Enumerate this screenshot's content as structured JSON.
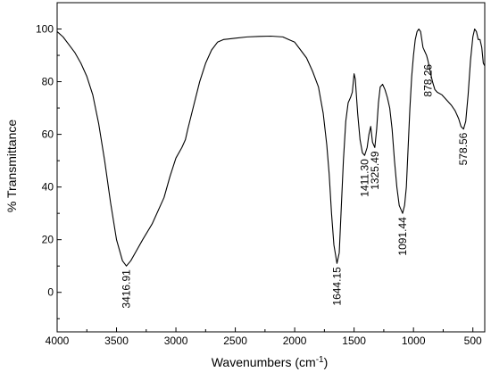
{
  "chart_data": {
    "type": "line",
    "title": "",
    "xlabel": "Wavenumbers (cm",
    "xlabel_sup": "-1",
    "xlabel_close": ")",
    "ylabel": "% Transmittance",
    "xlim": [
      4000,
      400
    ],
    "ylim": [
      -15,
      110
    ],
    "x_reversed": true,
    "grid": false,
    "xticks": [
      4000,
      3500,
      3000,
      2500,
      2000,
      1500,
      1000,
      500
    ],
    "yticks": [
      0,
      20,
      40,
      60,
      80,
      100
    ],
    "series": [
      {
        "color": "#000000",
        "points": [
          [
            4000,
            99
          ],
          [
            3950,
            97
          ],
          [
            3900,
            94
          ],
          [
            3850,
            91
          ],
          [
            3800,
            87
          ],
          [
            3750,
            82
          ],
          [
            3700,
            75
          ],
          [
            3650,
            64
          ],
          [
            3600,
            50
          ],
          [
            3550,
            34
          ],
          [
            3500,
            20
          ],
          [
            3450,
            12
          ],
          [
            3416.91,
            10
          ],
          [
            3380,
            12
          ],
          [
            3330,
            16
          ],
          [
            3280,
            20
          ],
          [
            3200,
            26
          ],
          [
            3100,
            36
          ],
          [
            3050,
            44
          ],
          [
            3000,
            51
          ],
          [
            2950,
            55
          ],
          [
            2920,
            58
          ],
          [
            2900,
            62
          ],
          [
            2850,
            71
          ],
          [
            2800,
            80
          ],
          [
            2750,
            87
          ],
          [
            2700,
            92
          ],
          [
            2650,
            95
          ],
          [
            2600,
            96
          ],
          [
            2500,
            96.5
          ],
          [
            2400,
            97
          ],
          [
            2300,
            97.2
          ],
          [
            2200,
            97.3
          ],
          [
            2100,
            97
          ],
          [
            2050,
            96
          ],
          [
            2000,
            95
          ],
          [
            1950,
            92
          ],
          [
            1900,
            89
          ],
          [
            1850,
            84
          ],
          [
            1800,
            78
          ],
          [
            1760,
            68
          ],
          [
            1730,
            56
          ],
          [
            1710,
            45
          ],
          [
            1690,
            30
          ],
          [
            1670,
            18
          ],
          [
            1644.15,
            11
          ],
          [
            1625,
            15
          ],
          [
            1610,
            30
          ],
          [
            1590,
            50
          ],
          [
            1570,
            65
          ],
          [
            1550,
            72
          ],
          [
            1530,
            74
          ],
          [
            1515,
            76
          ],
          [
            1500,
            83
          ],
          [
            1490,
            81
          ],
          [
            1470,
            68
          ],
          [
            1450,
            58
          ],
          [
            1430,
            53
          ],
          [
            1411.3,
            52
          ],
          [
            1390,
            55
          ],
          [
            1375,
            60
          ],
          [
            1360,
            63
          ],
          [
            1345,
            57
          ],
          [
            1325.49,
            55
          ],
          [
            1310,
            62
          ],
          [
            1295,
            72
          ],
          [
            1280,
            78
          ],
          [
            1260,
            79
          ],
          [
            1240,
            77
          ],
          [
            1220,
            74
          ],
          [
            1200,
            70
          ],
          [
            1180,
            62
          ],
          [
            1160,
            50
          ],
          [
            1140,
            40
          ],
          [
            1120,
            33
          ],
          [
            1091.44,
            30
          ],
          [
            1075,
            33
          ],
          [
            1060,
            40
          ],
          [
            1045,
            55
          ],
          [
            1030,
            70
          ],
          [
            1015,
            82
          ],
          [
            1000,
            90
          ],
          [
            985,
            96
          ],
          [
            970,
            99
          ],
          [
            955,
            100
          ],
          [
            940,
            99
          ],
          [
            920,
            93
          ],
          [
            900,
            91
          ],
          [
            890,
            90
          ],
          [
            878.26,
            88
          ],
          [
            860,
            84
          ],
          [
            840,
            80
          ],
          [
            820,
            77
          ],
          [
            800,
            76
          ],
          [
            760,
            75
          ],
          [
            720,
            73
          ],
          [
            680,
            71
          ],
          [
            650,
            69
          ],
          [
            620,
            66
          ],
          [
            600,
            63
          ],
          [
            578.56,
            62
          ],
          [
            560,
            65
          ],
          [
            540,
            75
          ],
          [
            520,
            88
          ],
          [
            500,
            97
          ],
          [
            485,
            100
          ],
          [
            470,
            99
          ],
          [
            455,
            96
          ],
          [
            440,
            96
          ],
          [
            425,
            93
          ],
          [
            412,
            87
          ],
          [
            400,
            86
          ]
        ]
      }
    ],
    "annotations": [
      {
        "x": 3416.91,
        "y": 10,
        "text": "3416.91",
        "position": "below"
      },
      {
        "x": 1644.15,
        "y": 11,
        "text": "1644.15",
        "position": "below"
      },
      {
        "x": 1411.3,
        "y": 52,
        "text": "1411.30",
        "position": "below"
      },
      {
        "x": 1325.49,
        "y": 55,
        "text": "1325.49",
        "position": "below"
      },
      {
        "x": 1091.44,
        "y": 30,
        "text": "1091.44",
        "position": "below"
      },
      {
        "x": 878.26,
        "y": 88,
        "text": "878.26",
        "position": "below"
      },
      {
        "x": 578.56,
        "y": 62,
        "text": "578.56",
        "position": "below"
      }
    ]
  }
}
